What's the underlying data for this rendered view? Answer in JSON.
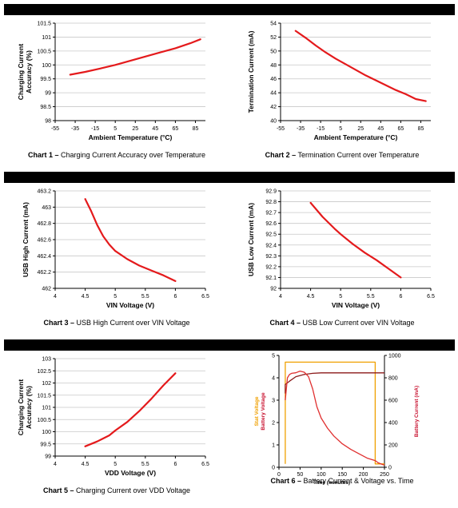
{
  "chart_data": [
    {
      "type": "line",
      "caption_bold": "Chart 1 –",
      "caption_rest": " Charging Current Accuracy over Temperature",
      "xlabel": "Ambient Temperature (°C)",
      "ylabel": [
        "Charging Current",
        "Accuracy (%)"
      ],
      "xlim": [
        -55,
        95
      ],
      "ylim": [
        98,
        101.5
      ],
      "x_ticks": [
        -55,
        -35,
        -15,
        5,
        25,
        45,
        65,
        85
      ],
      "x_tick_labels": [
        "-55",
        "-35",
        "-15",
        "5",
        "25",
        "45",
        "65",
        "85"
      ],
      "y_ticks": [
        98,
        98.5,
        99,
        99.5,
        100,
        100.5,
        101,
        101.5
      ],
      "y_tick_labels": [
        "98",
        "98.5",
        "99",
        "99.5",
        "100",
        "100.5",
        "101",
        "101.5"
      ],
      "grid": true,
      "series": [
        {
          "color": "#e41a1c",
          "x": [
            -40,
            -25,
            -10,
            5,
            20,
            35,
            50,
            65,
            80,
            90
          ],
          "y": [
            99.65,
            99.75,
            99.87,
            100.0,
            100.15,
            100.3,
            100.45,
            100.6,
            100.78,
            100.92
          ]
        }
      ]
    },
    {
      "type": "line",
      "caption_bold": "Chart 2 –",
      "caption_rest": " Termination Current over Temperature",
      "xlabel": "Ambient Temperature (°C)",
      "ylabel": [
        "Termination Current (mA)"
      ],
      "xlim": [
        -55,
        95
      ],
      "ylim": [
        40,
        54
      ],
      "x_ticks": [
        -55,
        -35,
        -15,
        5,
        25,
        45,
        65,
        85
      ],
      "x_tick_labels": [
        "-55",
        "-35",
        "-15",
        "5",
        "25",
        "45",
        "65",
        "85"
      ],
      "y_ticks": [
        40,
        42,
        44,
        46,
        48,
        50,
        52,
        54
      ],
      "y_tick_labels": [
        "40",
        "42",
        "44",
        "46",
        "48",
        "50",
        "52",
        "54"
      ],
      "grid": true,
      "series": [
        {
          "color": "#e41a1c",
          "x": [
            -40,
            -30,
            -20,
            -10,
            0,
            10,
            20,
            30,
            40,
            50,
            60,
            70,
            80,
            90
          ],
          "y": [
            52.9,
            51.9,
            50.8,
            49.8,
            48.9,
            48.1,
            47.3,
            46.5,
            45.8,
            45.1,
            44.4,
            43.8,
            43.1,
            42.8
          ]
        }
      ]
    },
    {
      "type": "line",
      "caption_bold": "Chart 3 –",
      "caption_rest": " USB High Current over VIN Voltage",
      "xlabel": "VIN Voltage (V)",
      "ylabel": [
        "USB High Current (mA)"
      ],
      "xlim": [
        4,
        6.5
      ],
      "ylim": [
        462,
        463.2
      ],
      "x_ticks": [
        4,
        4.5,
        5,
        5.5,
        6,
        6.5
      ],
      "x_tick_labels": [
        "4",
        "4.5",
        "5",
        "5.5",
        "6",
        "6.5"
      ],
      "y_ticks": [
        462,
        462.2,
        462.4,
        462.6,
        462.8,
        463,
        463.2
      ],
      "y_tick_labels": [
        "462",
        "462.2",
        "462.4",
        "462.6",
        "462.8",
        "463",
        "463.2"
      ],
      "grid": true,
      "series": [
        {
          "color": "#e41a1c",
          "x": [
            4.5,
            4.6,
            4.7,
            4.8,
            4.9,
            5.0,
            5.2,
            5.4,
            5.6,
            5.8,
            6.0
          ],
          "y": [
            463.1,
            462.95,
            462.78,
            462.64,
            462.54,
            462.46,
            462.36,
            462.28,
            462.22,
            462.16,
            462.09
          ]
        }
      ]
    },
    {
      "type": "line",
      "caption_bold": "Chart 4 –",
      "caption_rest": " USB Low Current over VIN Voltage",
      "xlabel": "VIN Voltage (V)",
      "ylabel": [
        "USB Low Current (mA)"
      ],
      "xlim": [
        4,
        6.5
      ],
      "ylim": [
        92,
        92.9
      ],
      "x_ticks": [
        4,
        4.5,
        5,
        5.5,
        6,
        6.5
      ],
      "x_tick_labels": [
        "4",
        "4.5",
        "5",
        "5.5",
        "6",
        "6.5"
      ],
      "y_ticks": [
        92,
        92.1,
        92.2,
        92.3,
        92.4,
        92.5,
        92.6,
        92.7,
        92.8,
        92.9
      ],
      "y_tick_labels": [
        "92",
        "92.1",
        "92.2",
        "92.3",
        "92.4",
        "92.5",
        "92.6",
        "92.7",
        "92.8",
        "92.9"
      ],
      "grid": true,
      "series": [
        {
          "color": "#e41a1c",
          "x": [
            4.5,
            4.7,
            4.9,
            5.0,
            5.2,
            5.4,
            5.6,
            5.8,
            6.0
          ],
          "y": [
            92.79,
            92.66,
            92.55,
            92.5,
            92.41,
            92.33,
            92.26,
            92.18,
            92.1
          ]
        }
      ]
    },
    {
      "type": "line",
      "caption_bold": "Chart 5 –",
      "caption_rest": " Charging Current over VDD Voltage",
      "xlabel": "VDD Voltage (V)",
      "ylabel": [
        "Charging Current",
        "Accuracy (%)"
      ],
      "xlim": [
        4,
        6.5
      ],
      "ylim": [
        99,
        103
      ],
      "x_ticks": [
        4,
        4.5,
        5,
        5.5,
        6,
        6.5
      ],
      "x_tick_labels": [
        "4",
        "4.5",
        "5",
        "5.5",
        "6",
        "6.5"
      ],
      "y_ticks": [
        99,
        99.5,
        100,
        100.5,
        101,
        101.5,
        102,
        102.5,
        103
      ],
      "y_tick_labels": [
        "99",
        "99.5",
        "100",
        "100.5",
        "101",
        "101.5",
        "102",
        "102.5",
        "103"
      ],
      "grid": true,
      "series": [
        {
          "color": "#e41a1c",
          "x": [
            4.5,
            4.7,
            4.9,
            5.0,
            5.2,
            5.4,
            5.6,
            5.8,
            6.0
          ],
          "y": [
            99.4,
            99.6,
            99.85,
            100.05,
            100.4,
            100.85,
            101.35,
            101.9,
            102.4
          ]
        }
      ]
    },
    {
      "type": "line",
      "caption_bold": "Chart 6 –",
      "caption_rest": " Battery Current & Voltage vs. Time",
      "xlabel": "Time (minutes)",
      "ylabel_left": [
        "Stat Voltage",
        "Battery Voltage"
      ],
      "ylabel_left_colors": [
        "#f0a000",
        "#c8102e"
      ],
      "ylabel_right": "Battery Current (mA)",
      "xlim": [
        0,
        250
      ],
      "ylim_left": [
        0,
        5
      ],
      "ylim_right": [
        0,
        1000
      ],
      "x_ticks": [
        0,
        50,
        100,
        150,
        200,
        250
      ],
      "x_tick_labels": [
        "0",
        "50",
        "100",
        "150",
        "200",
        "250"
      ],
      "y_ticks_left": [
        0,
        1,
        2,
        3,
        4,
        5
      ],
      "y_tick_labels_left": [
        "0",
        "1",
        "2",
        "3",
        "4",
        "5"
      ],
      "y_ticks_right": [
        0,
        200,
        400,
        600,
        800,
        1000
      ],
      "y_tick_labels_right": [
        "0",
        "200",
        "400",
        "600",
        "800",
        "1000"
      ],
      "grid": false,
      "series": [
        {
          "axis": "left",
          "color": "#f0a000",
          "x": [
            15,
            15,
            228,
            228,
            250
          ],
          "y": [
            0.15,
            4.7,
            4.7,
            0.15,
            0.15
          ]
        },
        {
          "axis": "left",
          "color": "#8b1a1a",
          "x": [
            15,
            15,
            25,
            40,
            60,
            80,
            100,
            150,
            200,
            230,
            250
          ],
          "y": [
            3.3,
            3.7,
            3.85,
            4.05,
            4.15,
            4.2,
            4.22,
            4.22,
            4.22,
            4.22,
            4.22
          ]
        },
        {
          "axis": "right",
          "color": "#e03030",
          "x": [
            15,
            20,
            25,
            30,
            40,
            50,
            60,
            70,
            80,
            90,
            100,
            115,
            130,
            150,
            170,
            190,
            210,
            228,
            235,
            245,
            250
          ],
          "y": [
            600,
            800,
            830,
            840,
            845,
            860,
            850,
            810,
            700,
            540,
            440,
            350,
            280,
            210,
            160,
            120,
            80,
            60,
            40,
            25,
            20
          ]
        }
      ]
    }
  ]
}
